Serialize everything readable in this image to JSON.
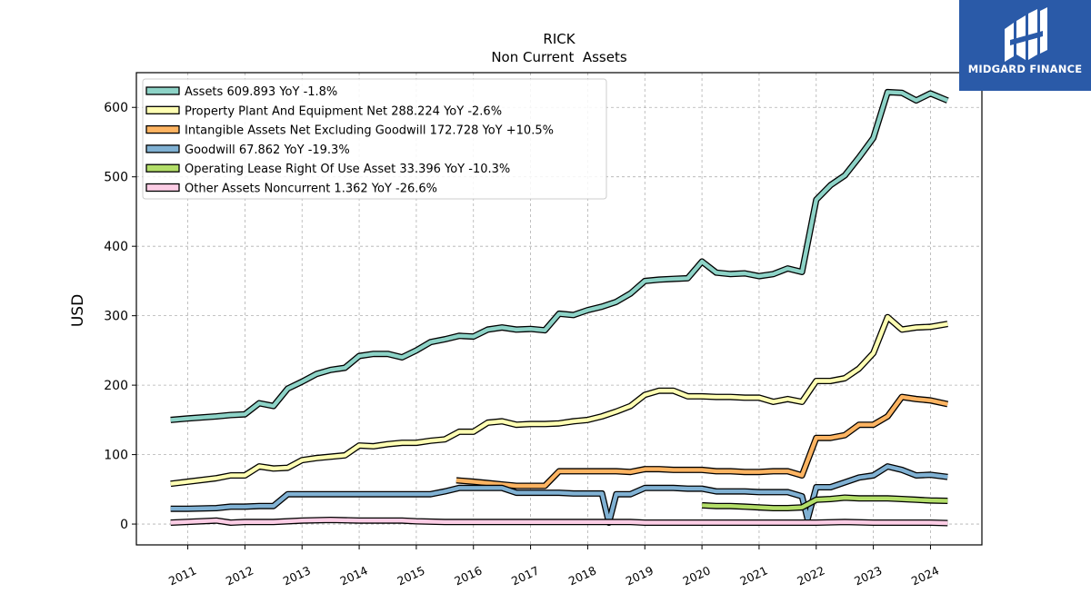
{
  "chart_data": {
    "type": "line",
    "title": "RICK",
    "subtitle": "Non Current  Assets",
    "ylabel": "USD",
    "xlabel": "",
    "xlim": [
      2010.1,
      2024.9
    ],
    "ylim": [
      -30,
      650
    ],
    "grid": true,
    "legend_position": "top-left",
    "x_ticks": [
      2011,
      2012,
      2013,
      2014,
      2015,
      2016,
      2017,
      2018,
      2019,
      2020,
      2021,
      2022,
      2023,
      2024
    ],
    "y_ticks": [
      0,
      100,
      200,
      300,
      400,
      500,
      600
    ],
    "series": [
      {
        "name": "Assets  609.893 YoY -1.8%",
        "color": "#8dd3c7",
        "x": [
          2010.7,
          2011.0,
          2011.5,
          2011.75,
          2012.0,
          2012.25,
          2012.5,
          2012.75,
          2013.0,
          2013.25,
          2013.5,
          2013.75,
          2014.0,
          2014.25,
          2014.5,
          2014.75,
          2015.0,
          2015.25,
          2015.5,
          2015.75,
          2016.0,
          2016.25,
          2016.5,
          2016.75,
          2017.0,
          2017.25,
          2017.5,
          2017.75,
          2018.0,
          2018.25,
          2018.5,
          2018.75,
          2019.0,
          2019.25,
          2019.5,
          2019.75,
          2020.0,
          2020.25,
          2020.5,
          2020.75,
          2021.0,
          2021.25,
          2021.5,
          2021.75,
          2022.0,
          2022.25,
          2022.5,
          2022.75,
          2023.0,
          2023.25,
          2023.5,
          2023.75,
          2024.0,
          2024.3
        ],
        "y": [
          150,
          152,
          155,
          157,
          158,
          174,
          170,
          195,
          205,
          216,
          222,
          225,
          242,
          245,
          245,
          240,
          250,
          262,
          266,
          271,
          270,
          280,
          283,
          280,
          281,
          279,
          303,
          301,
          308,
          313,
          320,
          332,
          350,
          352,
          353,
          354,
          378,
          362,
          360,
          361,
          357,
          360,
          368,
          363,
          467,
          488,
          502,
          528,
          556,
          622,
          621,
          610,
          620,
          609.893
        ]
      },
      {
        "name": "Property Plant And Equipment Net  288.224 YoY -2.6%",
        "color": "#ffffb3",
        "x": [
          2010.7,
          2011.0,
          2011.5,
          2011.75,
          2012.0,
          2012.25,
          2012.5,
          2012.75,
          2013.0,
          2013.25,
          2013.5,
          2013.75,
          2014.0,
          2014.25,
          2014.5,
          2014.75,
          2015.0,
          2015.25,
          2015.5,
          2015.75,
          2016.0,
          2016.25,
          2016.5,
          2016.75,
          2017.0,
          2017.25,
          2017.5,
          2017.75,
          2018.0,
          2018.25,
          2018.5,
          2018.75,
          2019.0,
          2019.25,
          2019.5,
          2019.75,
          2020.0,
          2020.25,
          2020.5,
          2020.75,
          2021.0,
          2021.25,
          2021.5,
          2021.75,
          2022.0,
          2022.25,
          2022.5,
          2022.75,
          2023.0,
          2023.25,
          2023.5,
          2023.75,
          2024.0,
          2024.3
        ],
        "y": [
          58,
          61,
          66,
          70,
          70,
          83,
          80,
          81,
          92,
          95,
          97,
          99,
          113,
          112,
          115,
          117,
          117,
          120,
          122,
          133,
          133,
          146,
          148,
          143,
          144,
          144,
          145,
          148,
          150,
          155,
          162,
          170,
          186,
          192,
          192,
          184,
          184,
          183,
          183,
          182,
          182,
          176,
          180,
          176,
          206,
          206,
          210,
          224,
          246,
          298,
          280,
          283,
          284,
          288.224
        ]
      },
      {
        "name": "Intangible Assets Net Excluding Goodwill  172.728 YoY +10.5%",
        "color": "#fdb462",
        "x": [
          2015.7,
          2016.0,
          2016.25,
          2016.5,
          2016.75,
          2017.0,
          2017.25,
          2017.5,
          2017.75,
          2018.0,
          2018.25,
          2018.5,
          2018.75,
          2019.0,
          2019.25,
          2019.5,
          2019.75,
          2020.0,
          2020.25,
          2020.5,
          2020.75,
          2021.0,
          2021.25,
          2021.5,
          2021.75,
          2022.0,
          2022.25,
          2022.5,
          2022.75,
          2023.0,
          2023.25,
          2023.5,
          2023.75,
          2024.0,
          2024.3
        ],
        "y": [
          63,
          61,
          59,
          57,
          55,
          55,
          55,
          76,
          76,
          76,
          76,
          76,
          75,
          79,
          79,
          78,
          78,
          78,
          76,
          76,
          75,
          75,
          76,
          76,
          70,
          124,
          124,
          128,
          143,
          143,
          155,
          183,
          180,
          178,
          172.728
        ]
      },
      {
        "name": "Goodwill  67.862 YoY -19.3%",
        "color": "#80b1d3",
        "x": [
          2010.7,
          2011.0,
          2011.5,
          2011.75,
          2012.0,
          2012.25,
          2012.5,
          2012.75,
          2013.0,
          2013.25,
          2013.5,
          2013.75,
          2014.0,
          2014.25,
          2014.5,
          2014.75,
          2015.0,
          2015.25,
          2015.5,
          2015.75,
          2016.0,
          2016.25,
          2016.5,
          2016.75,
          2017.0,
          2017.25,
          2017.5,
          2017.75,
          2018.0,
          2018.25,
          2018.37,
          2018.5,
          2018.75,
          2019.0,
          2019.25,
          2019.5,
          2019.75,
          2020.0,
          2020.25,
          2020.5,
          2020.75,
          2021.0,
          2021.25,
          2021.5,
          2021.75,
          2021.85,
          2022.0,
          2022.25,
          2022.5,
          2022.75,
          2023.0,
          2023.25,
          2023.5,
          2023.75,
          2024.0,
          2024.3
        ],
        "y": [
          22,
          22,
          23,
          25,
          25,
          26,
          26,
          43,
          43,
          43,
          43,
          43,
          43,
          43,
          43,
          43,
          43,
          43,
          47,
          52,
          52,
          52,
          52,
          45,
          45,
          45,
          45,
          44,
          44,
          44,
          2,
          43,
          43,
          52,
          52,
          52,
          51,
          51,
          47,
          47,
          47,
          46,
          46,
          46,
          40,
          7,
          53,
          53,
          60,
          67,
          70,
          83,
          78,
          70,
          71,
          67.862
        ]
      },
      {
        "name": "Operating Lease Right Of Use Asset  33.396 YoY -10.3%",
        "color": "#b3de69",
        "x": [
          2020.0,
          2020.25,
          2020.5,
          2020.75,
          2021.0,
          2021.25,
          2021.5,
          2021.75,
          2022.0,
          2022.25,
          2022.5,
          2022.75,
          2023.0,
          2023.25,
          2023.5,
          2023.75,
          2024.0,
          2024.3
        ],
        "y": [
          27,
          26,
          26,
          25,
          24,
          23,
          23,
          24,
          35,
          36,
          38,
          37,
          37,
          37,
          36,
          35,
          34,
          33.396
        ]
      },
      {
        "name": "Other Assets Noncurrent  1.362 YoY -26.6%",
        "color": "#fccde5",
        "x": [
          2010.7,
          2011.5,
          2011.75,
          2012.0,
          2012.5,
          2013.0,
          2013.5,
          2014.0,
          2014.5,
          2014.75,
          2015.0,
          2015.5,
          2016.0,
          2016.5,
          2017.0,
          2017.5,
          2018.0,
          2018.5,
          2018.75,
          2019.0,
          2019.5,
          2020.0,
          2020.5,
          2021.0,
          2021.5,
          2022.0,
          2022.5,
          2023.0,
          2023.5,
          2024.0,
          2024.3
        ],
        "y": [
          2,
          5,
          2,
          3,
          3,
          5,
          6,
          5,
          5,
          5,
          4,
          3,
          3,
          3,
          3,
          3,
          3,
          3,
          3,
          2,
          2,
          2,
          2,
          2,
          2,
          2,
          3,
          2,
          2,
          2,
          1.362
        ]
      }
    ]
  },
  "logo": {
    "brand": "MIDGARD FINANCE",
    "color": "#2a5aa8"
  }
}
